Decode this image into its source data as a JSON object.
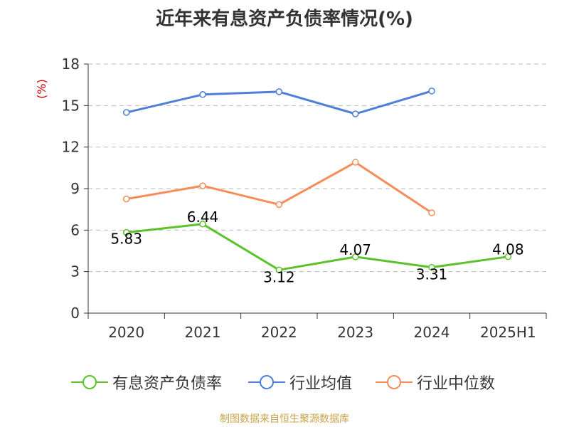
{
  "title": "近年来有息资产负债率情况(%)",
  "footer": "制图数据来自恒生聚源数据库",
  "colors": {
    "series1": "#5bc22a",
    "series2": "#4f7fd8",
    "series3": "#f58d5a",
    "unit": "#cc0000",
    "axis": "#333333",
    "grid": "#bbbbbb"
  },
  "chart_data": {
    "type": "line",
    "categories": [
      "2020",
      "2021",
      "2022",
      "2023",
      "2024",
      "2025H1"
    ],
    "ylim": [
      0,
      18
    ],
    "yticks": [
      0,
      3,
      6,
      9,
      12,
      15,
      18
    ],
    "unit_label": "(%)",
    "grid": true,
    "legend_position": "bottom",
    "series": [
      {
        "name": "有息资产负债率",
        "values": [
          5.83,
          6.44,
          3.12,
          4.07,
          3.31,
          4.08
        ],
        "labels": [
          "5.83",
          "6.44",
          "3.12",
          "4.07",
          "3.31",
          "4.08"
        ]
      },
      {
        "name": "行业均值",
        "values": [
          14.5,
          15.8,
          16.0,
          14.4,
          16.05,
          null
        ]
      },
      {
        "name": "行业中位数",
        "values": [
          8.25,
          9.2,
          7.85,
          10.9,
          7.25,
          null
        ]
      }
    ]
  }
}
